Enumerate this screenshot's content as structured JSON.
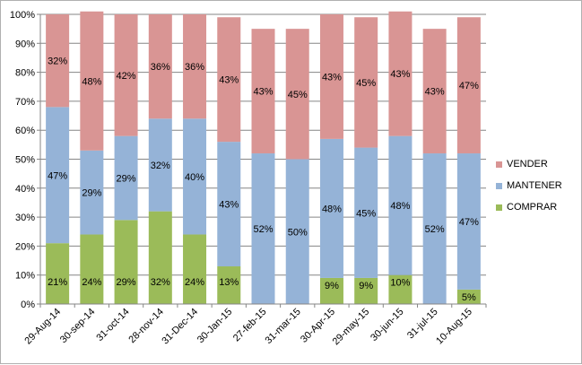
{
  "chart_data": {
    "type": "bar",
    "stacked": true,
    "categories": [
      "29-Aug-14",
      "30-sep-14",
      "31-oct-14",
      "28-nov-14",
      "31-Dec-14",
      "30-Jan-15",
      "27-feb-15",
      "31-mar-15",
      "30-Apr-15",
      "29-may-15",
      "30-jun-15",
      "31-jul-15",
      "10-Aug-15"
    ],
    "series": [
      {
        "name": "COMPRAR",
        "color": "#9bbb59",
        "values": [
          21,
          24,
          29,
          32,
          24,
          13,
          0,
          0,
          9,
          9,
          10,
          0,
          5
        ],
        "labels": [
          "21%",
          "24%",
          "29%",
          "32%",
          "24%",
          "13%",
          "",
          "",
          "9%",
          "9%",
          "10%",
          "",
          "5%"
        ]
      },
      {
        "name": "MANTENER",
        "color": "#95b3d7",
        "values": [
          47,
          29,
          29,
          32,
          40,
          43,
          52,
          50,
          48,
          45,
          48,
          52,
          47
        ],
        "labels": [
          "47%",
          "29%",
          "29%",
          "32%",
          "40%",
          "43%",
          "52%",
          "50%",
          "48%",
          "45%",
          "48%",
          "52%",
          "47%"
        ]
      },
      {
        "name": "VENDER",
        "color": "#d99594",
        "values": [
          32,
          48,
          42,
          36,
          36,
          43,
          43,
          45,
          43,
          45,
          43,
          43,
          47
        ],
        "labels": [
          "32%",
          "48%",
          "42%",
          "36%",
          "36%",
          "43%",
          "43%",
          "45%",
          "43%",
          "45%",
          "43%",
          "43%",
          "47%"
        ]
      }
    ],
    "y_ticks": [
      "0%",
      "10%",
      "20%",
      "30%",
      "40%",
      "50%",
      "60%",
      "70%",
      "80%",
      "90%",
      "100%"
    ],
    "ylim": [
      0,
      100
    ],
    "grid": true,
    "legend_position": "right",
    "legend_order": [
      "VENDER",
      "MANTENER",
      "COMPRAR"
    ],
    "title": "",
    "xlabel": "",
    "ylabel": ""
  }
}
